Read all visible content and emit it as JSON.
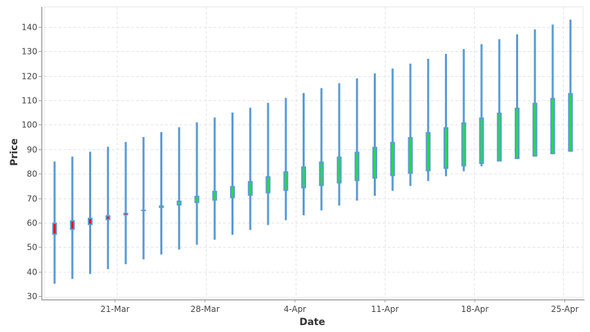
{
  "chart_data": {
    "type": "candlestick",
    "title": "",
    "xlabel": "Date",
    "ylabel": "Price",
    "ylim": [
      30,
      145
    ],
    "yticks": [
      30,
      40,
      50,
      60,
      70,
      80,
      90,
      100,
      110,
      120,
      130,
      140
    ],
    "xtick_labels": [
      "21-Mar",
      "28-Mar",
      "4-Apr",
      "11-Apr",
      "18-Apr",
      "25-Apr"
    ],
    "grid": true,
    "legend": null,
    "colors": {
      "wick": "#5b9bd5",
      "body_border": "#5b9bd5",
      "up_fill": "#22dd44",
      "down_fill": "#ff0000",
      "grid": "#e4e4e4",
      "axis": "#9a9a9a"
    },
    "series": [
      {
        "name": "Price",
        "candles": [
          {
            "open": 60,
            "high": 85,
            "low": 35,
            "close": 55
          },
          {
            "open": 61,
            "high": 87,
            "low": 37,
            "close": 57
          },
          {
            "open": 62,
            "high": 89,
            "low": 39,
            "close": 59
          },
          {
            "open": 63,
            "high": 91,
            "low": 41,
            "close": 61
          },
          {
            "open": 64,
            "high": 93,
            "low": 43,
            "close": 63
          },
          {
            "open": 65,
            "high": 95,
            "low": 45,
            "close": 65
          },
          {
            "open": 66,
            "high": 97,
            "low": 47,
            "close": 67
          },
          {
            "open": 67,
            "high": 99,
            "low": 49,
            "close": 69
          },
          {
            "open": 68,
            "high": 101,
            "low": 51,
            "close": 71
          },
          {
            "open": 69,
            "high": 103,
            "low": 53,
            "close": 73
          },
          {
            "open": 70,
            "high": 105,
            "low": 55,
            "close": 75
          },
          {
            "open": 71,
            "high": 107,
            "low": 57,
            "close": 77
          },
          {
            "open": 72,
            "high": 109,
            "low": 59,
            "close": 79
          },
          {
            "open": 73,
            "high": 111,
            "low": 61,
            "close": 81
          },
          {
            "open": 74,
            "high": 113,
            "low": 63,
            "close": 83
          },
          {
            "open": 75,
            "high": 115,
            "low": 65,
            "close": 85
          },
          {
            "open": 76,
            "high": 117,
            "low": 67,
            "close": 87
          },
          {
            "open": 77,
            "high": 119,
            "low": 69,
            "close": 89
          },
          {
            "open": 78,
            "high": 121,
            "low": 71,
            "close": 91
          },
          {
            "open": 79,
            "high": 123,
            "low": 73,
            "close": 93
          },
          {
            "open": 80,
            "high": 125,
            "low": 75,
            "close": 95
          },
          {
            "open": 81,
            "high": 127,
            "low": 77,
            "close": 97
          },
          {
            "open": 82,
            "high": 129,
            "low": 79,
            "close": 99
          },
          {
            "open": 83,
            "high": 131,
            "low": 81,
            "close": 101
          },
          {
            "open": 84,
            "high": 133,
            "low": 83,
            "close": 103
          },
          {
            "open": 85,
            "high": 135,
            "low": 85,
            "close": 105
          },
          {
            "open": 86,
            "high": 137,
            "low": 87,
            "close": 107
          },
          {
            "open": 87,
            "high": 139,
            "low": 89,
            "close": 109
          },
          {
            "open": 88,
            "high": 141,
            "low": 91,
            "close": 111
          },
          {
            "open": 89,
            "high": 143,
            "low": 93,
            "close": 113
          }
        ]
      }
    ]
  }
}
